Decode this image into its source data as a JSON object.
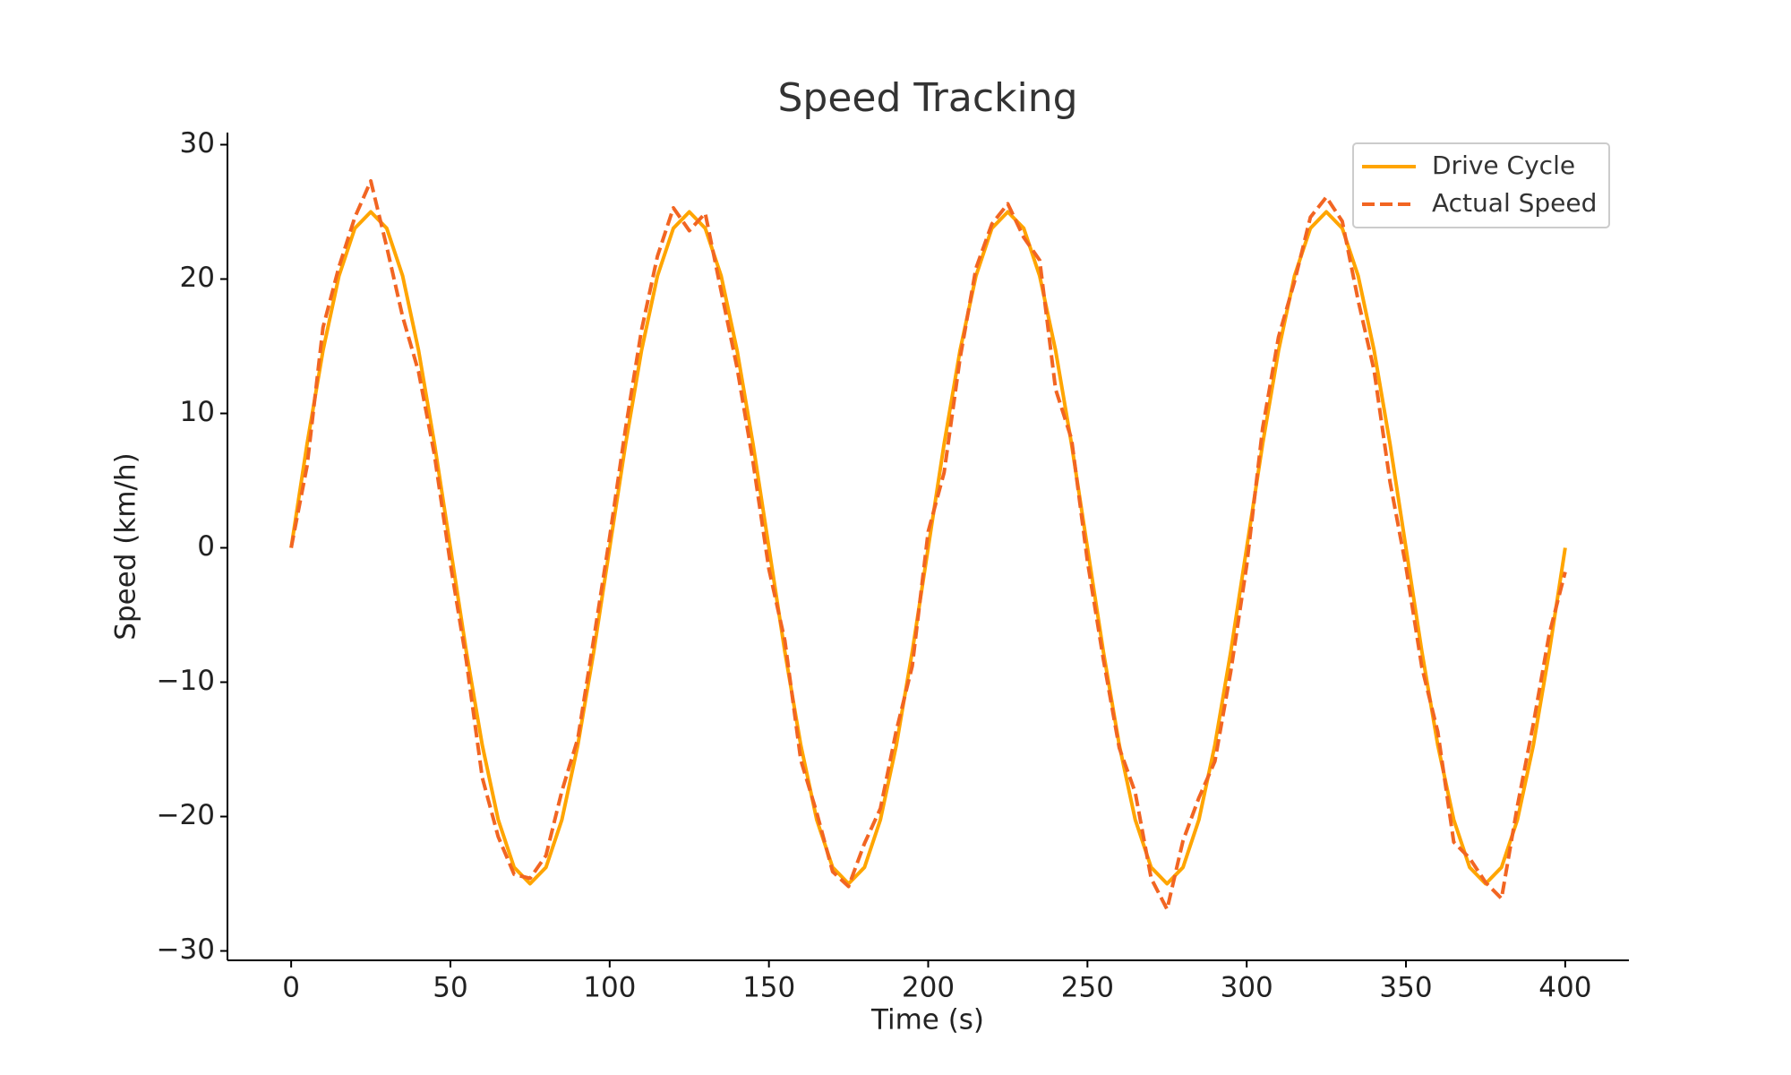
{
  "chart_data": {
    "type": "line",
    "title": "Speed Tracking",
    "xlabel": "Time (s)",
    "ylabel": "Speed (km/h)",
    "x": [
      0,
      5,
      10,
      15,
      20,
      25,
      30,
      35,
      40,
      45,
      50,
      55,
      60,
      65,
      70,
      75,
      80,
      85,
      90,
      95,
      100,
      105,
      110,
      115,
      120,
      125,
      130,
      135,
      140,
      145,
      150,
      155,
      160,
      165,
      170,
      175,
      180,
      185,
      190,
      195,
      200,
      205,
      210,
      215,
      220,
      225,
      230,
      235,
      240,
      245,
      250,
      255,
      260,
      265,
      270,
      275,
      280,
      285,
      290,
      295,
      300,
      305,
      310,
      315,
      320,
      325,
      330,
      335,
      340,
      345,
      350,
      355,
      360,
      365,
      370,
      375,
      380,
      385,
      390,
      395,
      400
    ],
    "series": [
      {
        "name": "Drive Cycle",
        "color": "#ffa500",
        "dash": false,
        "values": [
          0,
          7.73,
          14.69,
          20.23,
          23.78,
          25,
          23.78,
          20.23,
          14.69,
          7.73,
          0,
          -7.73,
          -14.69,
          -20.23,
          -23.78,
          -25,
          -23.78,
          -20.23,
          -14.69,
          -7.73,
          0,
          7.73,
          14.69,
          20.23,
          23.78,
          25,
          23.78,
          20.23,
          14.69,
          7.73,
          0,
          -7.73,
          -14.69,
          -20.23,
          -23.78,
          -25,
          -23.78,
          -20.23,
          -14.69,
          -7.73,
          0,
          7.73,
          14.69,
          20.23,
          23.78,
          25,
          23.78,
          20.23,
          14.69,
          7.73,
          0,
          -7.73,
          -14.69,
          -20.23,
          -23.78,
          -25,
          -23.78,
          -20.23,
          -14.69,
          -7.73,
          0,
          7.73,
          14.69,
          20.23,
          23.78,
          25,
          23.78,
          20.23,
          14.69,
          7.73,
          0,
          -7.73,
          -14.69,
          -20.23,
          -23.78,
          -25,
          -23.78,
          -20.23,
          -14.69,
          -7.73,
          0
        ]
      },
      {
        "name": "Actual Speed",
        "color": "#f26522",
        "dash": true,
        "values": [
          0,
          6.1,
          16.4,
          20.9,
          24.6,
          27.3,
          22.4,
          17.2,
          13.1,
          6.9,
          -1.2,
          -8.4,
          -17.1,
          -21.5,
          -24.3,
          -24.6,
          -22.9,
          -18.1,
          -14.2,
          -6.8,
          0.8,
          8.9,
          16.2,
          21.7,
          25.3,
          23.6,
          24.9,
          19.1,
          13.4,
          6.4,
          -1.6,
          -6.9,
          -15.8,
          -19.7,
          -24.1,
          -25.2,
          -22.0,
          -19.4,
          -13.6,
          -8.8,
          1.2,
          5.6,
          14.1,
          20.8,
          24.1,
          25.6,
          23.1,
          21.4,
          11.8,
          8.1,
          -1.0,
          -8.3,
          -14.9,
          -18.2,
          -24.6,
          -26.9,
          -21.8,
          -18.6,
          -15.9,
          -9.2,
          -1.3,
          8.9,
          15.7,
          19.8,
          24.6,
          26.1,
          24.3,
          18.4,
          13.2,
          4.9,
          -1.4,
          -8.9,
          -13.7,
          -21.9,
          -23.1,
          -24.9,
          -26.1,
          -19.2,
          -13.1,
          -6.4,
          -1.8
        ]
      }
    ],
    "xlim": [
      -20,
      420
    ],
    "xticks": [
      0,
      50,
      100,
      150,
      200,
      250,
      300,
      350,
      400
    ],
    "ylim": [
      -30.7,
      30.9
    ],
    "yticks": [
      {
        "value": -30,
        "label": "−30"
      },
      {
        "value": -20,
        "label": "−20"
      },
      {
        "value": -10,
        "label": "−10"
      },
      0,
      10,
      20,
      30
    ],
    "legend": "upper right"
  }
}
